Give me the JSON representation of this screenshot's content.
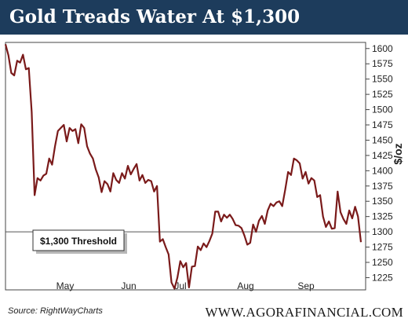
{
  "header": {
    "title": "Gold Treads Water At $1,300"
  },
  "footer": {
    "source": "Source: RightWayCharts",
    "brand": "WWW.AGORAFINANCIAL.COM"
  },
  "chart_data": {
    "type": "line",
    "title": "Gold Treads Water At $1,300",
    "ylabel": "$/oz",
    "xlabel": "",
    "ylim": [
      1205,
      1610
    ],
    "y_axis_side": "right",
    "yticks": [
      1225,
      1250,
      1275,
      1300,
      1325,
      1350,
      1375,
      1400,
      1425,
      1450,
      1475,
      1500,
      1525,
      1550,
      1575,
      1600
    ],
    "x_tick_labels": [
      "May",
      "Jun",
      "Jul",
      "Aug",
      "Sep"
    ],
    "grid": false,
    "threshold": {
      "value": 1300,
      "label": "$1,300 Threshold"
    },
    "series": [
      {
        "color": "#7a1a1a",
        "values": [
          1607,
          1589,
          1560,
          1556,
          1580,
          1577,
          1590,
          1566,
          1568,
          1496,
          1360,
          1388,
          1384,
          1392,
          1395,
          1420,
          1410,
          1440,
          1465,
          1470,
          1475,
          1448,
          1470,
          1465,
          1468,
          1445,
          1476,
          1470,
          1440,
          1428,
          1420,
          1402,
          1389,
          1365,
          1383,
          1378,
          1366,
          1396,
          1385,
          1380,
          1396,
          1387,
          1408,
          1394,
          1403,
          1411,
          1384,
          1393,
          1380,
          1385,
          1383,
          1366,
          1375,
          1284,
          1288,
          1275,
          1263,
          1217,
          1207,
          1225,
          1252,
          1242,
          1249,
          1209,
          1243,
          1244,
          1276,
          1270,
          1281,
          1275,
          1285,
          1297,
          1333,
          1333,
          1317,
          1328,
          1323,
          1328,
          1321,
          1311,
          1310,
          1306,
          1294,
          1279,
          1282,
          1312,
          1300,
          1318,
          1326,
          1313,
          1335,
          1346,
          1342,
          1348,
          1350,
          1342,
          1369,
          1398,
          1393,
          1420,
          1417,
          1412,
          1387,
          1398,
          1379,
          1388,
          1384,
          1357,
          1360,
          1325,
          1308,
          1317,
          1305,
          1306,
          1366,
          1332,
          1321,
          1313,
          1335,
          1322,
          1341,
          1325,
          1283
        ]
      }
    ]
  }
}
